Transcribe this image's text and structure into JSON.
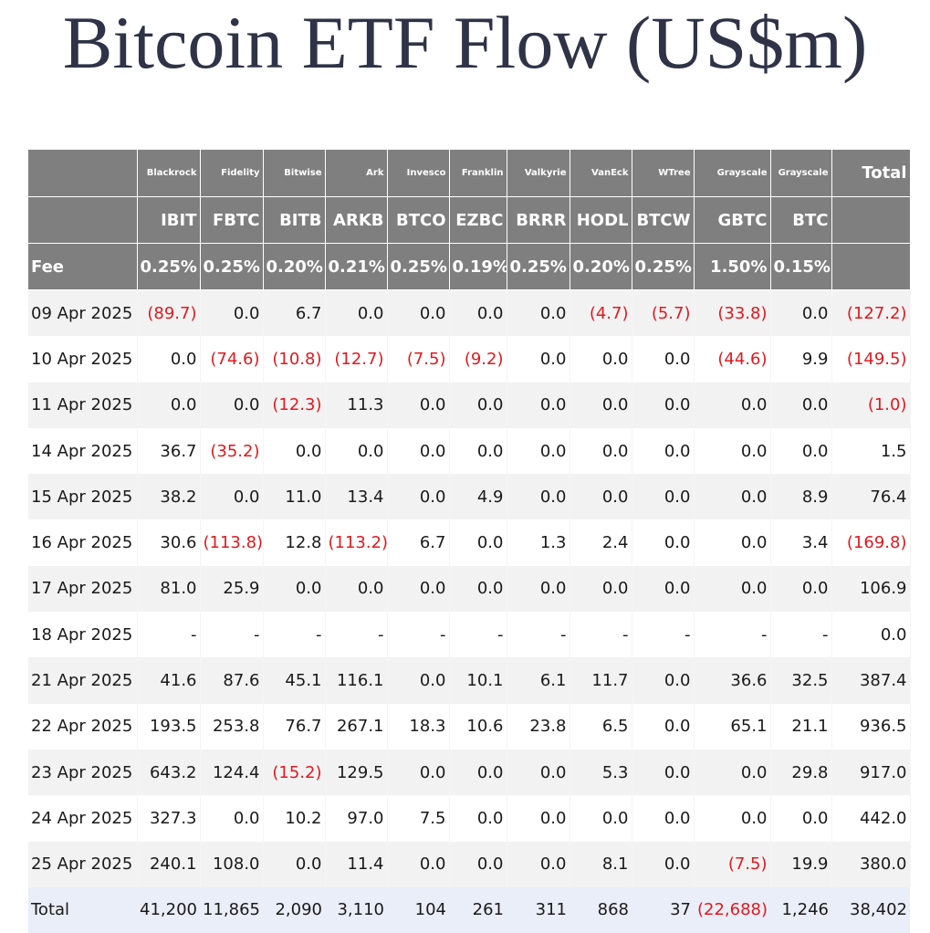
{
  "title": "Bitcoin ETF Flow (US$m)",
  "colors": {
    "header_bg": "#7f7f7f",
    "negative": "#e0191e",
    "total_row_bg": "#eaeef8",
    "title": "#2e3347"
  },
  "header": {
    "issuers": [
      "Blackrock",
      "Fidelity",
      "Bitwise",
      "Ark",
      "Invesco",
      "Franklin",
      "Valkyrie",
      "VanEck",
      "WTree",
      "Grayscale",
      "Grayscale"
    ],
    "total_label": "Total",
    "tickers": [
      "IBIT",
      "FBTC",
      "BITB",
      "ARKB",
      "BTCO",
      "EZBC",
      "BRRR",
      "HODL",
      "BTCW",
      "GBTC",
      "BTC"
    ],
    "fee_label": "Fee",
    "fees": [
      "0.25%",
      "0.25%",
      "0.20%",
      "0.21%",
      "0.25%",
      "0.19%",
      "0.25%",
      "0.20%",
      "0.25%",
      "1.50%",
      "0.15%"
    ]
  },
  "rows": [
    {
      "date": "09 Apr 2025",
      "values": [
        "(89.7)",
        "0.0",
        "6.7",
        "0.0",
        "0.0",
        "0.0",
        "0.0",
        "(4.7)",
        "(5.7)",
        "(33.8)",
        "0.0",
        "(127.2)"
      ]
    },
    {
      "date": "10 Apr 2025",
      "values": [
        "0.0",
        "(74.6)",
        "(10.8)",
        "(12.7)",
        "(7.5)",
        "(9.2)",
        "0.0",
        "0.0",
        "0.0",
        "(44.6)",
        "9.9",
        "(149.5)"
      ]
    },
    {
      "date": "11 Apr 2025",
      "values": [
        "0.0",
        "0.0",
        "(12.3)",
        "11.3",
        "0.0",
        "0.0",
        "0.0",
        "0.0",
        "0.0",
        "0.0",
        "0.0",
        "(1.0)"
      ]
    },
    {
      "date": "14 Apr 2025",
      "values": [
        "36.7",
        "(35.2)",
        "0.0",
        "0.0",
        "0.0",
        "0.0",
        "0.0",
        "0.0",
        "0.0",
        "0.0",
        "0.0",
        "1.5"
      ]
    },
    {
      "date": "15 Apr 2025",
      "values": [
        "38.2",
        "0.0",
        "11.0",
        "13.4",
        "0.0",
        "4.9",
        "0.0",
        "0.0",
        "0.0",
        "0.0",
        "8.9",
        "76.4"
      ]
    },
    {
      "date": "16 Apr 2025",
      "values": [
        "30.6",
        "(113.8)",
        "12.8",
        "(113.2)",
        "6.7",
        "0.0",
        "1.3",
        "2.4",
        "0.0",
        "0.0",
        "3.4",
        "(169.8)"
      ]
    },
    {
      "date": "17 Apr 2025",
      "values": [
        "81.0",
        "25.9",
        "0.0",
        "0.0",
        "0.0",
        "0.0",
        "0.0",
        "0.0",
        "0.0",
        "0.0",
        "0.0",
        "106.9"
      ]
    },
    {
      "date": "18 Apr 2025",
      "values": [
        "-",
        "-",
        "-",
        "-",
        "-",
        "-",
        "-",
        "-",
        "-",
        "-",
        "-",
        "0.0"
      ]
    },
    {
      "date": "21 Apr 2025",
      "values": [
        "41.6",
        "87.6",
        "45.1",
        "116.1",
        "0.0",
        "10.1",
        "6.1",
        "11.7",
        "0.0",
        "36.6",
        "32.5",
        "387.4"
      ]
    },
    {
      "date": "22 Apr 2025",
      "values": [
        "193.5",
        "253.8",
        "76.7",
        "267.1",
        "18.3",
        "10.6",
        "23.8",
        "6.5",
        "0.0",
        "65.1",
        "21.1",
        "936.5"
      ]
    },
    {
      "date": "23 Apr 2025",
      "values": [
        "643.2",
        "124.4",
        "(15.2)",
        "129.5",
        "0.0",
        "0.0",
        "0.0",
        "5.3",
        "0.0",
        "0.0",
        "29.8",
        "917.0"
      ]
    },
    {
      "date": "24 Apr 2025",
      "values": [
        "327.3",
        "0.0",
        "10.2",
        "97.0",
        "7.5",
        "0.0",
        "0.0",
        "0.0",
        "0.0",
        "0.0",
        "0.0",
        "442.0"
      ]
    },
    {
      "date": "25 Apr 2025",
      "values": [
        "240.1",
        "108.0",
        "0.0",
        "11.4",
        "0.0",
        "0.0",
        "0.0",
        "8.1",
        "0.0",
        "(7.5)",
        "19.9",
        "380.0"
      ]
    }
  ],
  "total_row": {
    "label": "Total",
    "values": [
      "41,200",
      "11,865",
      "2,090",
      "3,110",
      "104",
      "261",
      "311",
      "868",
      "37",
      "(22,688)",
      "1,246",
      "38,402"
    ]
  }
}
